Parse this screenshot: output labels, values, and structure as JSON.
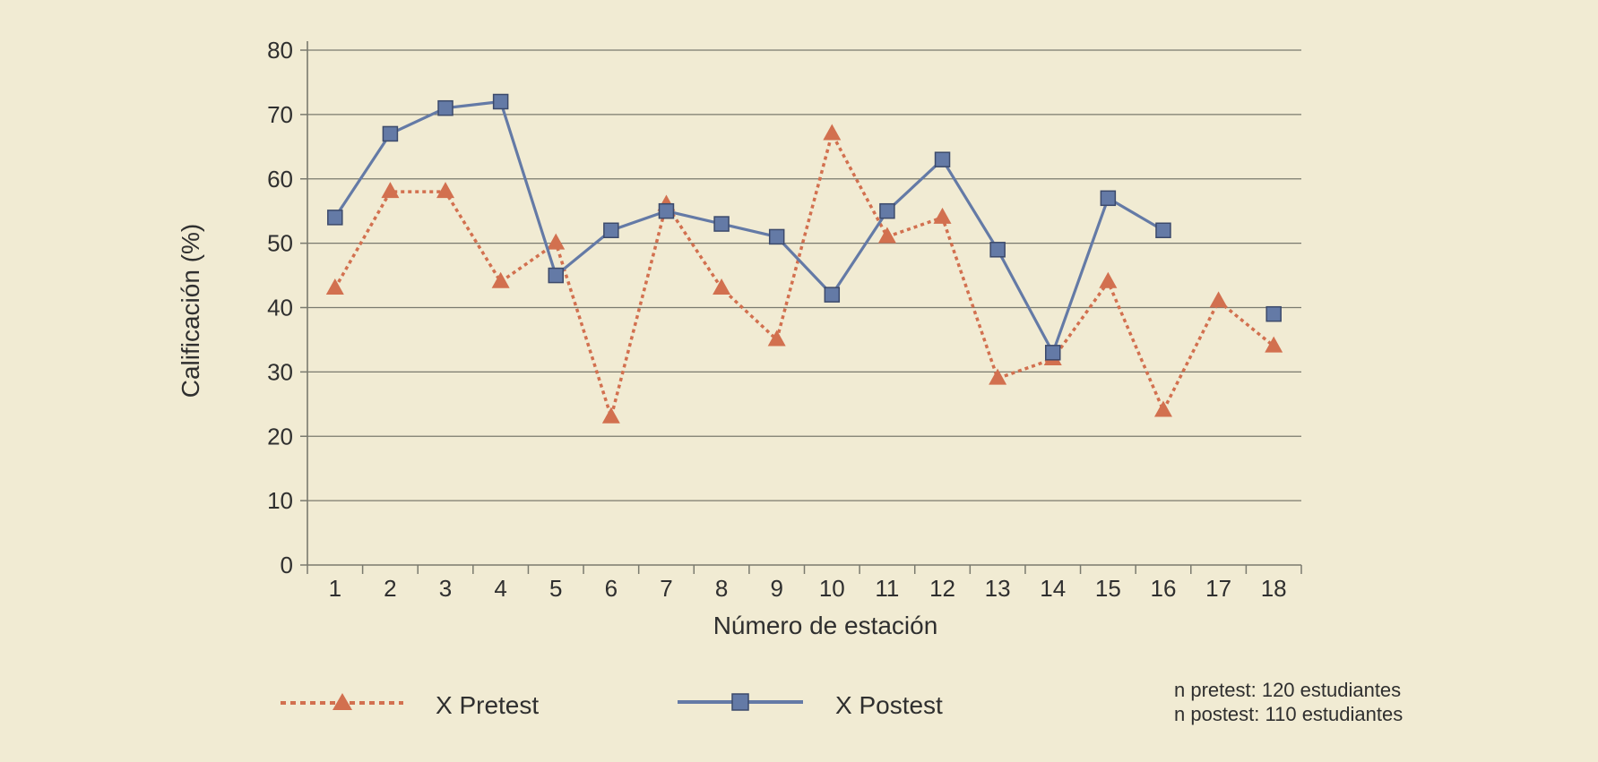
{
  "chart_data": {
    "type": "line",
    "xlabel": "Número de estación",
    "ylabel": "Calificación (%)",
    "ylim": [
      0,
      80
    ],
    "yticks": [
      "0",
      "10",
      "20",
      "30",
      "40",
      "50",
      "60",
      "70",
      "80"
    ],
    "categories": [
      "1",
      "2",
      "3",
      "4",
      "5",
      "6",
      "7",
      "8",
      "9",
      "10",
      "11",
      "12",
      "13",
      "14",
      "15",
      "16",
      "17",
      "18"
    ],
    "grid": "horizontal",
    "legend_position": "bottom",
    "series": [
      {
        "name": "X Pretest",
        "style": "dotted",
        "marker": "triangle",
        "color": "#d2704f",
        "values": [
          43,
          58,
          58,
          44,
          50,
          23,
          56,
          43,
          35,
          67,
          51,
          54,
          29,
          32,
          44,
          24,
          41,
          34
        ]
      },
      {
        "name": "X Postest",
        "style": "solid",
        "marker": "square",
        "color": "#647aa6",
        "values": [
          54,
          67,
          71,
          72,
          45,
          52,
          55,
          53,
          51,
          42,
          55,
          63,
          49,
          33,
          57,
          52,
          null,
          39
        ]
      }
    ],
    "notes": [
      "n pretest: 120 estudiantes",
      "n postest: 110 estudiantes"
    ]
  },
  "colors": {
    "background": "#f1ebd3",
    "grid": "#7a7a6e",
    "pretest": "#d2704f",
    "postest": "#647aa6",
    "marker_edge": "#3c4a6b"
  }
}
